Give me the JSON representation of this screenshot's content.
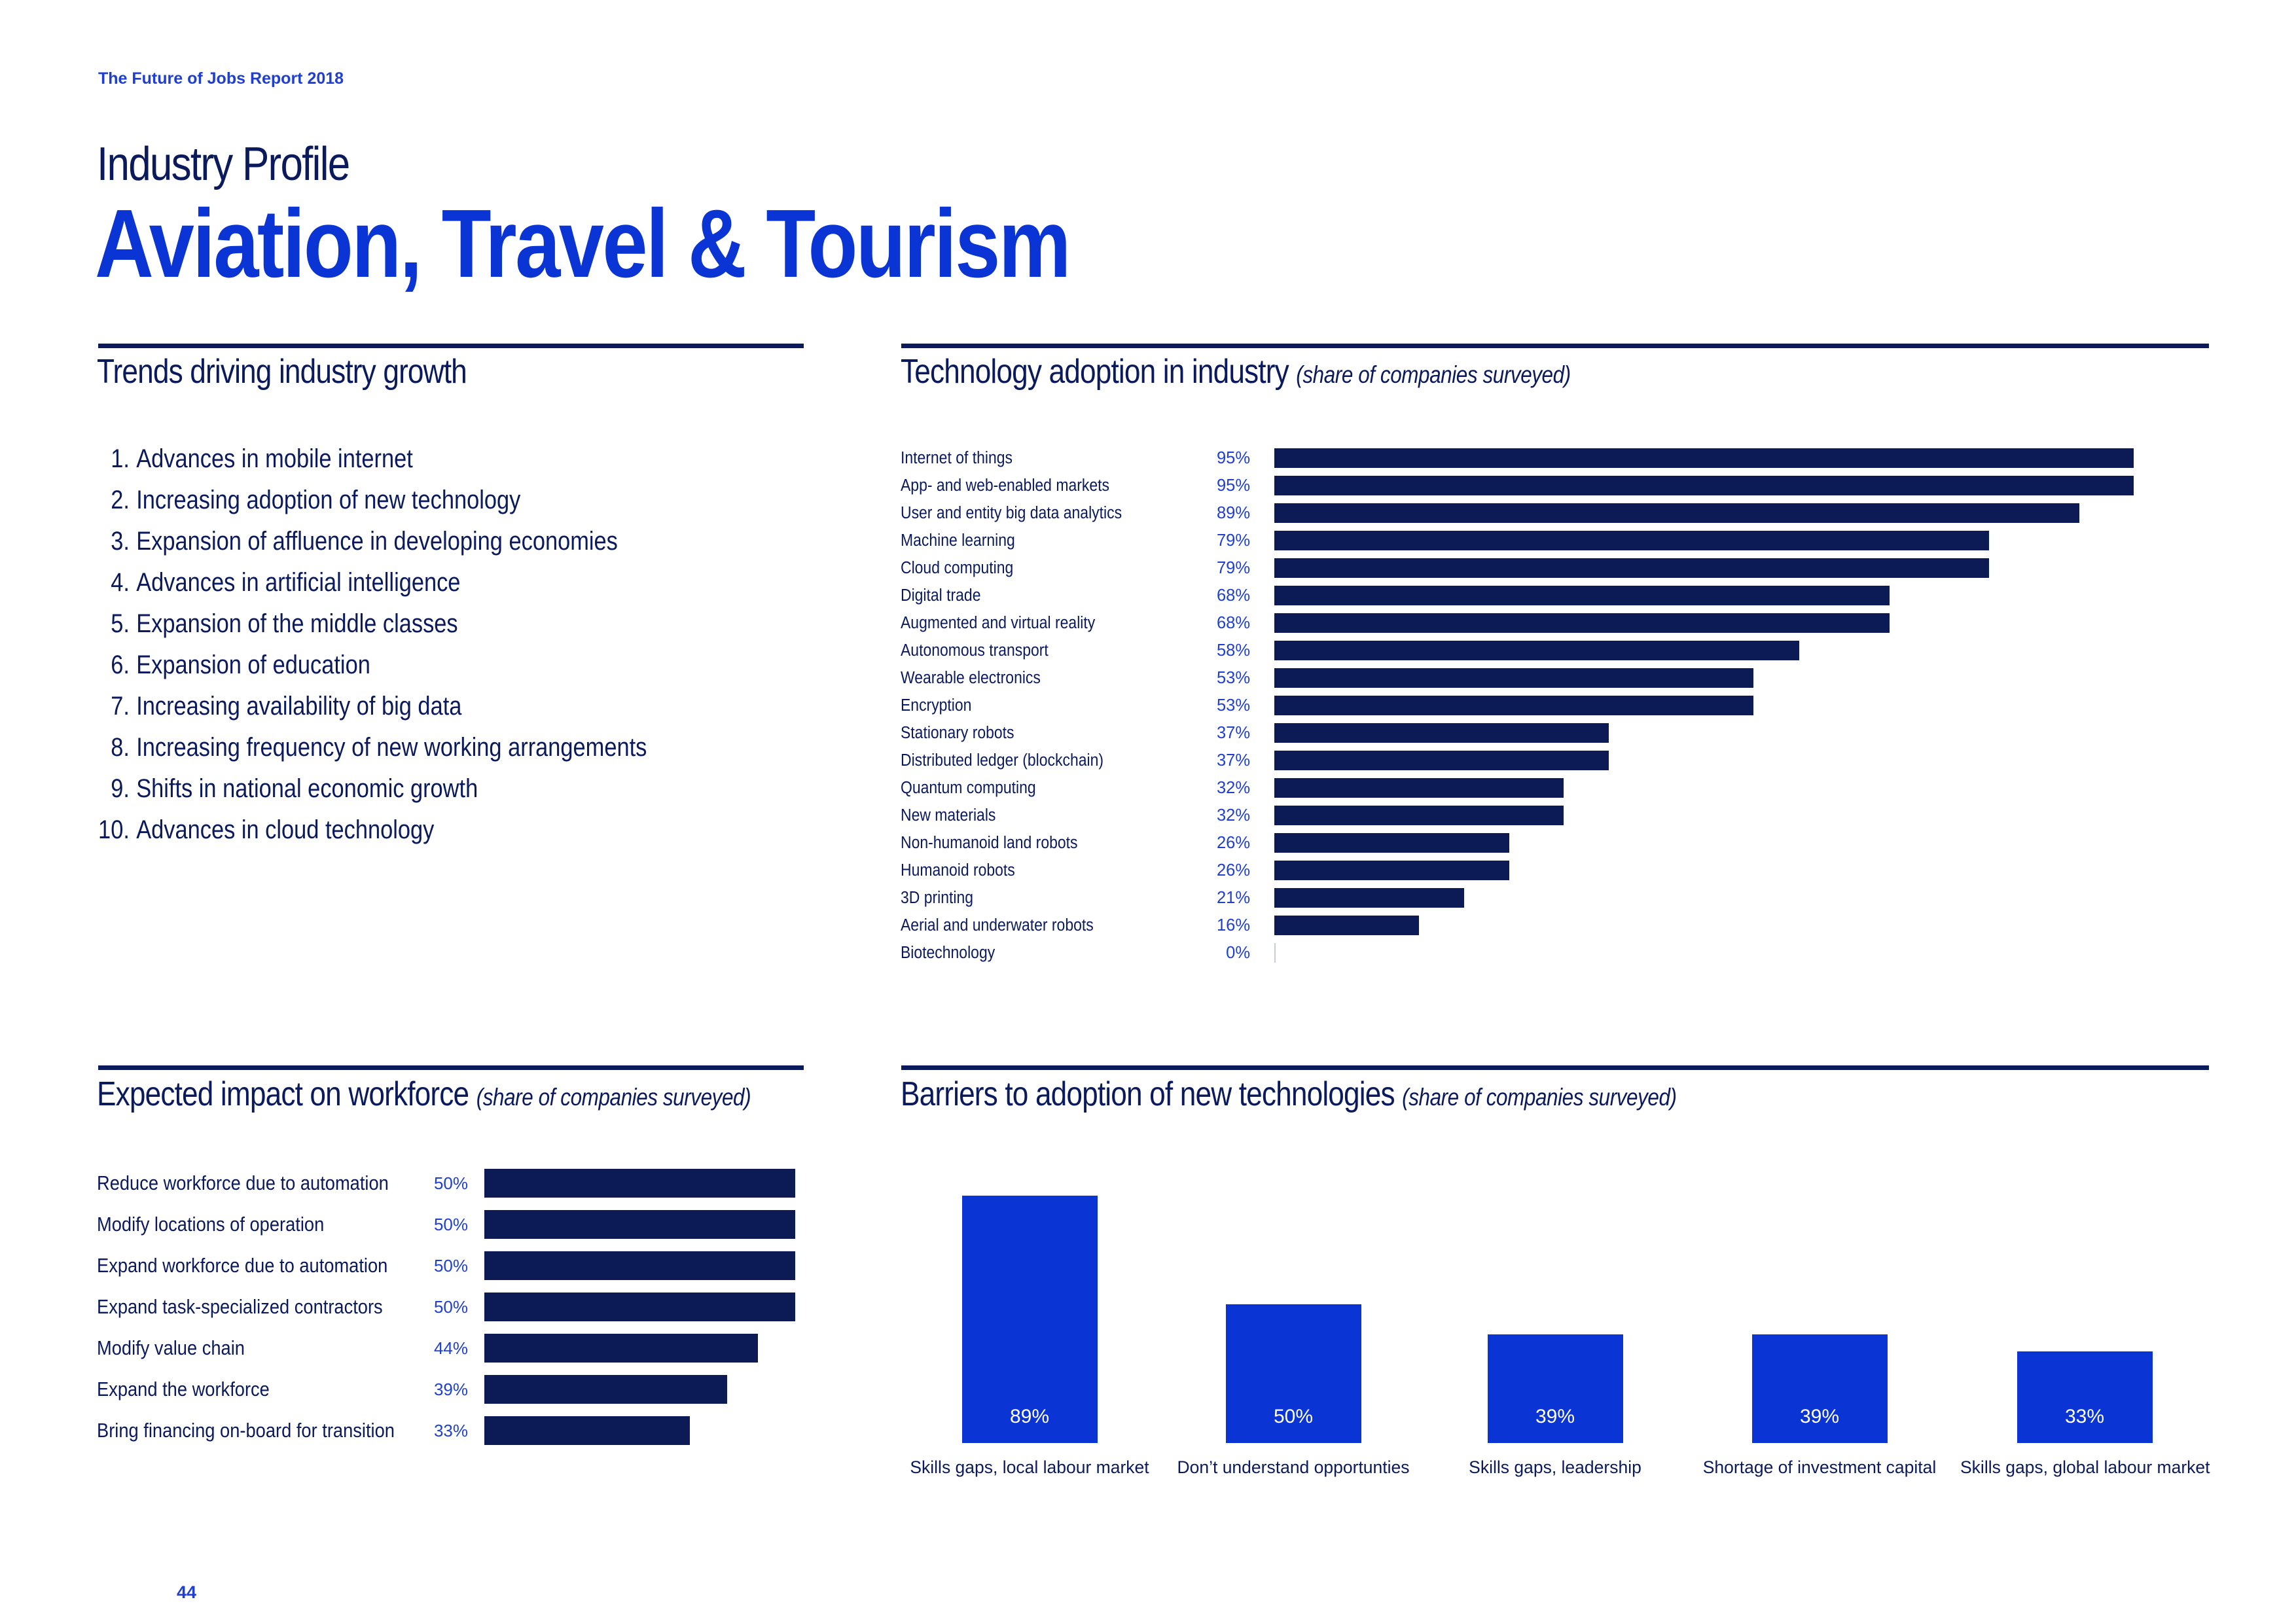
{
  "header": {
    "report_title": "The Future of Jobs Report 2018",
    "kicker": "Industry Profile",
    "title": "Aviation, Travel & Tourism"
  },
  "trends": {
    "title": "Trends driving industry growth",
    "items": [
      {
        "num": "1.",
        "text": "Advances in mobile internet"
      },
      {
        "num": "2.",
        "text": "Increasing adoption of new technology"
      },
      {
        "num": "3.",
        "text": "Expansion of affluence in developing economies"
      },
      {
        "num": "4.",
        "text": "Advances in artificial intelligence"
      },
      {
        "num": "5.",
        "text": "Expansion of the middle classes"
      },
      {
        "num": "6.",
        "text": "Expansion of education"
      },
      {
        "num": "7.",
        "text": "Increasing availability of big data"
      },
      {
        "num": "8.",
        "text": "Increasing frequency of new working arrangements"
      },
      {
        "num": "9.",
        "text": "Shifts in national economic growth"
      },
      {
        "num": "10.",
        "text": "Advances in cloud technology"
      }
    ]
  },
  "tech": {
    "title": "Technology adoption in industry",
    "subtitle": "(share of companies surveyed)"
  },
  "workforce": {
    "title": "Expected impact on workforce",
    "subtitle": "(share of companies surveyed)"
  },
  "barriers": {
    "title": "Barriers to adoption of new technologies",
    "subtitle": "(share of companies surveyed)"
  },
  "footer": {
    "page_number": "44"
  },
  "colors": {
    "navy": "#0c1a55",
    "blue": "#0a35d4",
    "accent_text": "#1f3fd4"
  },
  "chart_data": [
    {
      "type": "bar",
      "orientation": "horizontal",
      "title": "Technology adoption in industry (share of companies surveyed)",
      "unit": "%",
      "xlim": [
        0,
        100
      ],
      "categories": [
        "Internet of things",
        "App- and web-enabled markets",
        "User and entity big data analytics",
        "Machine learning",
        "Cloud computing",
        "Digital trade",
        "Augmented and virtual reality",
        "Autonomous transport",
        "Wearable electronics",
        "Encryption",
        "Stationary robots",
        "Distributed ledger (blockchain)",
        "Quantum computing",
        "New materials",
        "Non-humanoid land robots",
        "Humanoid robots",
        "3D printing",
        "Aerial and underwater robots",
        "Biotechnology"
      ],
      "values": [
        95,
        95,
        89,
        79,
        79,
        68,
        68,
        58,
        53,
        53,
        37,
        37,
        32,
        32,
        26,
        26,
        21,
        16,
        0
      ],
      "labels": [
        "95%",
        "95%",
        "89%",
        "79%",
        "79%",
        "68%",
        "68%",
        "58%",
        "53%",
        "53%",
        "37%",
        "37%",
        "32%",
        "32%",
        "26%",
        "26%",
        "21%",
        "16%",
        "0%"
      ]
    },
    {
      "type": "bar",
      "orientation": "horizontal",
      "title": "Expected impact on workforce (share of companies surveyed)",
      "unit": "%",
      "xlim": [
        0,
        50
      ],
      "categories": [
        "Reduce workforce due to automation",
        "Modify locations of operation",
        "Expand workforce due to automation",
        "Expand task-specialized contractors",
        "Modify value chain",
        "Expand the workforce",
        "Bring financing on-board for transition"
      ],
      "values": [
        50,
        50,
        50,
        50,
        44,
        39,
        33
      ],
      "labels": [
        "50%",
        "50%",
        "50%",
        "50%",
        "44%",
        "39%",
        "33%"
      ]
    },
    {
      "type": "bar",
      "orientation": "vertical",
      "title": "Barriers to adoption of new technologies (share of companies surveyed)",
      "unit": "%",
      "ylim": [
        0,
        89
      ],
      "categories": [
        "Skills gaps, local labour market",
        "Don’t understand opportunties",
        "Skills gaps, leadership",
        "Shortage of investment capital",
        "Skills gaps, global labour market"
      ],
      "values": [
        89,
        50,
        39,
        39,
        33
      ],
      "labels": [
        "89%",
        "50%",
        "39%",
        "39%",
        "33%"
      ]
    }
  ]
}
